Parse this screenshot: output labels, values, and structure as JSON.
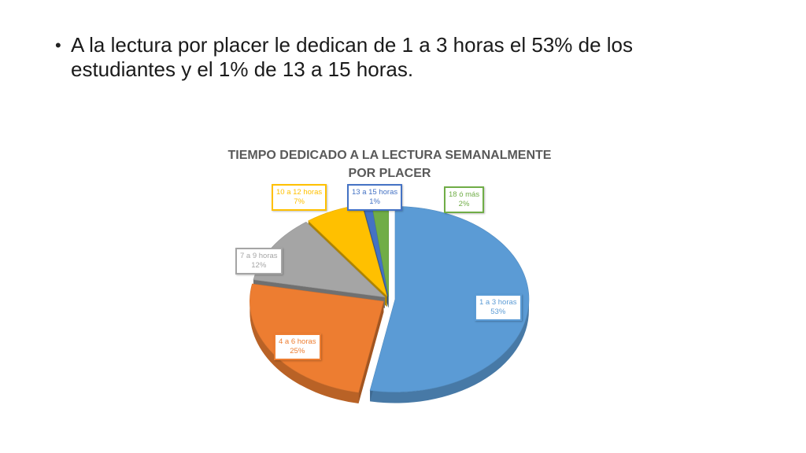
{
  "slide": {
    "bullet_text": "A la lectura por placer le dedican de 1 a 3 horas el 53% de los estudiantes y el 1% de 13 a 15 horas."
  },
  "chart_data": {
    "type": "pie",
    "title": "TIEMPO DEDICADO A LA LECTURA SEMANALMENTE POR PLACER",
    "categories": [
      "1 a 3 horas",
      "4 a 6 horas",
      "7 a 9 horas",
      "10 a 12 horas",
      "13 a 15 horas",
      "18 ó más"
    ],
    "values": [
      53,
      25,
      12,
      7,
      1,
      2
    ],
    "value_labels": [
      "53%",
      "25%",
      "12%",
      "7%",
      "1%",
      "2%"
    ],
    "colors": [
      "#5B9BD5",
      "#ED7D31",
      "#A5A5A5",
      "#FFC000",
      "#4472C4",
      "#70AD47"
    ],
    "style": "3d-exploded",
    "legend": "none"
  }
}
